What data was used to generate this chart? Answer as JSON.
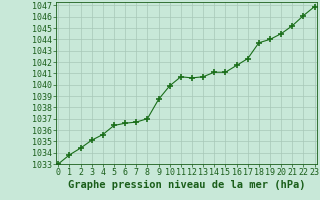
{
  "x": [
    0,
    1,
    2,
    3,
    4,
    5,
    6,
    7,
    8,
    9,
    10,
    11,
    12,
    13,
    14,
    15,
    16,
    17,
    18,
    19,
    20,
    21,
    22,
    23
  ],
  "y": [
    1033.0,
    1033.8,
    1034.4,
    1035.1,
    1035.6,
    1036.4,
    1036.6,
    1036.7,
    1037.0,
    1038.7,
    1039.9,
    1040.7,
    1040.6,
    1040.7,
    1041.1,
    1041.1,
    1041.7,
    1042.3,
    1043.7,
    1044.0,
    1044.5,
    1045.2,
    1046.1,
    1046.9
  ],
  "line_color": "#1a6e1a",
  "marker_color": "#1a6e1a",
  "bg_color": "#c8e8d8",
  "grid_color": "#a8c8b8",
  "text_color": "#1a5e1a",
  "xlabel": "Graphe pression niveau de la mer (hPa)",
  "ylim_min": 1033,
  "ylim_max": 1047,
  "xlim_min": 0,
  "xlim_max": 23,
  "ytick_step": 1,
  "xtick_labels": [
    "0",
    "1",
    "2",
    "3",
    "4",
    "5",
    "6",
    "7",
    "8",
    "9",
    "10",
    "11",
    "12",
    "13",
    "14",
    "15",
    "16",
    "17",
    "18",
    "19",
    "20",
    "21",
    "22",
    "23"
  ],
  "xlabel_fontsize": 7.5,
  "tick_fontsize": 6,
  "marker_size": 4,
  "line_width": 0.8
}
